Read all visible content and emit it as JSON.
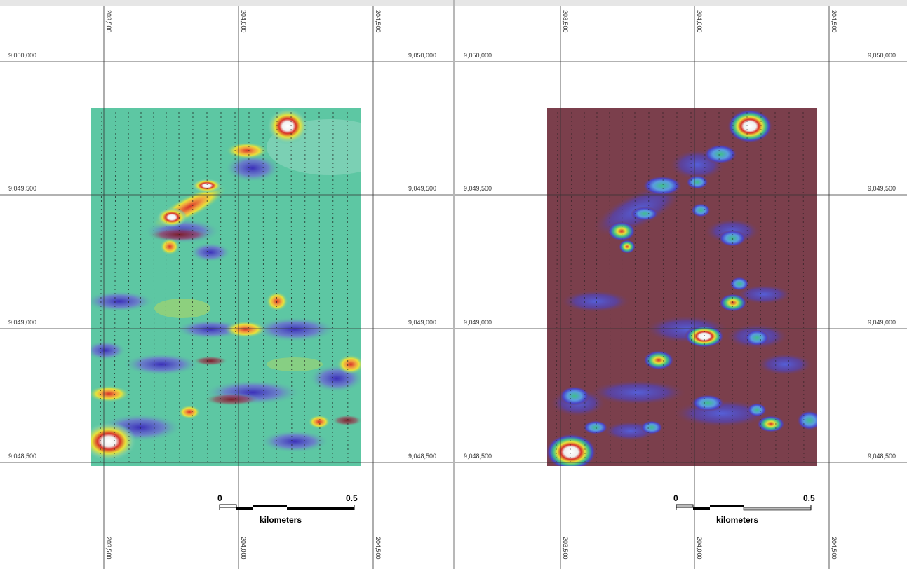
{
  "maps": [
    {
      "id": "left",
      "theme": "green",
      "x_ticks": [
        "203,500",
        "204,000",
        "204,500"
      ],
      "y_ticks": [
        "9,050,000",
        "9,049,500",
        "9,049,000",
        "9,048,500"
      ],
      "scalebar": {
        "start": "0",
        "end": "0.5",
        "unit": "kilometers"
      }
    },
    {
      "id": "right",
      "theme": "maroon",
      "x_ticks": [
        "203,500",
        "204,000",
        "204,500"
      ],
      "y_ticks": [
        "9,050,000",
        "9,049,500",
        "9,049,000",
        "9,048,500"
      ],
      "scalebar": {
        "start": "0",
        "end": "0.5",
        "unit": "kilometers"
      }
    }
  ],
  "colors": {
    "green_base": "#5dc7a3",
    "maroon_base": "#7b3f4c",
    "blue": "#4a43c9",
    "yellow": "#e8e23a",
    "red": "#d8322a",
    "white": "#f4f4f4",
    "grid": "#333333"
  }
}
